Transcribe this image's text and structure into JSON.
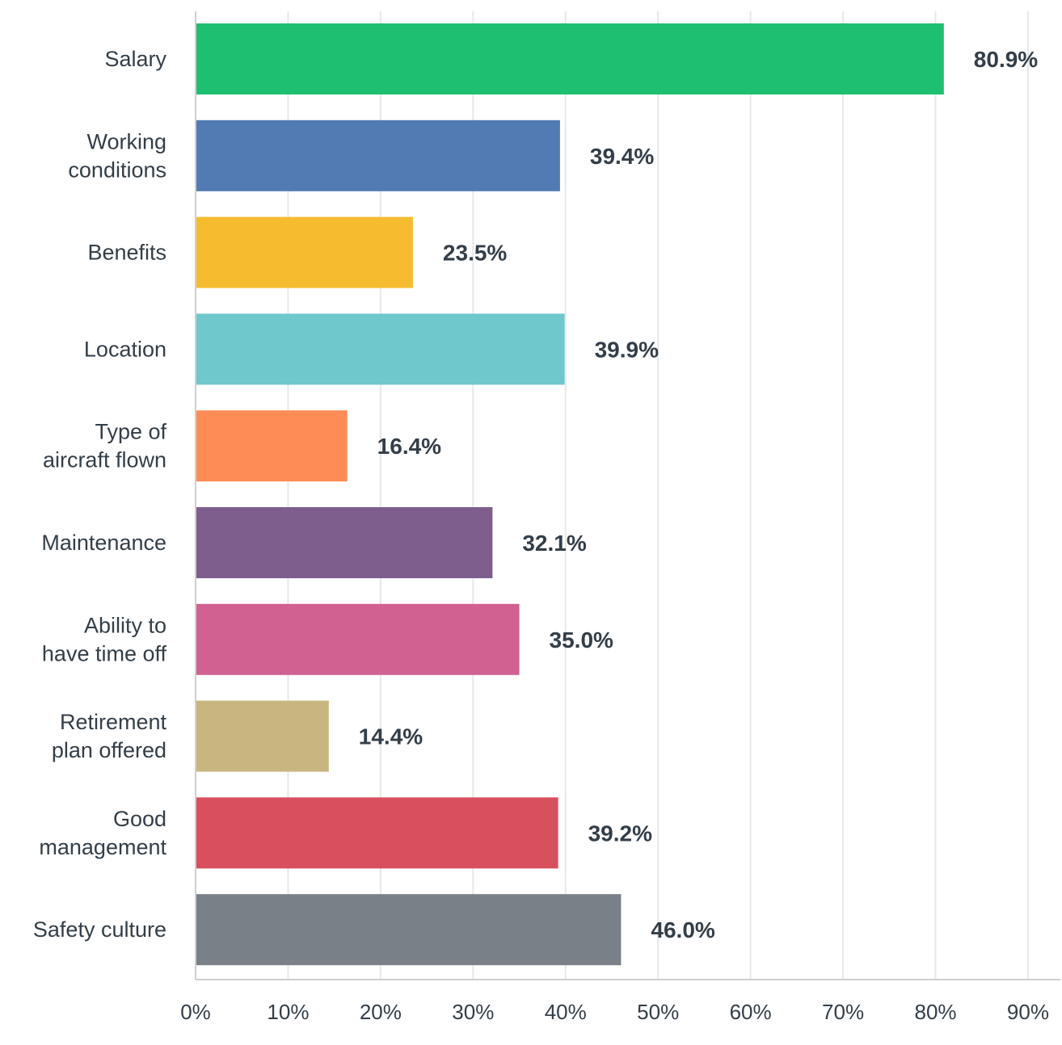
{
  "chart_data": {
    "type": "bar",
    "orientation": "horizontal",
    "categories": [
      [
        "Salary"
      ],
      [
        "Working",
        "conditions"
      ],
      [
        "Benefits"
      ],
      [
        "Location"
      ],
      [
        "Type of",
        "aircraft flown"
      ],
      [
        "Maintenance"
      ],
      [
        "Ability to",
        "have time off"
      ],
      [
        "Retirement",
        "plan offered"
      ],
      [
        "Good",
        "management"
      ],
      [
        "Safety culture"
      ]
    ],
    "values": [
      80.9,
      39.4,
      23.5,
      39.9,
      16.4,
      32.1,
      35.0,
      14.4,
      39.2,
      46.0
    ],
    "value_labels": [
      "80.9%",
      "39.4%",
      "23.5%",
      "39.9%",
      "16.4%",
      "32.1%",
      "35.0%",
      "14.4%",
      "39.2%",
      "46.0%"
    ],
    "colors": [
      "#1fbf72",
      "#517bb2",
      "#f6bc2f",
      "#6fc8cb",
      "#fe8c56",
      "#7d5e8d",
      "#d06191",
      "#c9b580",
      "#d84f5e",
      "#7a8087"
    ],
    "x_ticks": [
      0,
      10,
      20,
      30,
      40,
      50,
      60,
      70,
      80,
      90
    ],
    "x_tick_labels": [
      "0%",
      "10%",
      "20%",
      "30%",
      "40%",
      "50%",
      "60%",
      "70%",
      "80%",
      "90%"
    ],
    "xlim": [
      0,
      93.5
    ],
    "title": "",
    "xlabel": "",
    "ylabel": "",
    "grid": true,
    "legend": "none",
    "gridline_color": "#e8e8e8",
    "axis_color": "#cfcfcf",
    "text_color": "#333e48"
  }
}
